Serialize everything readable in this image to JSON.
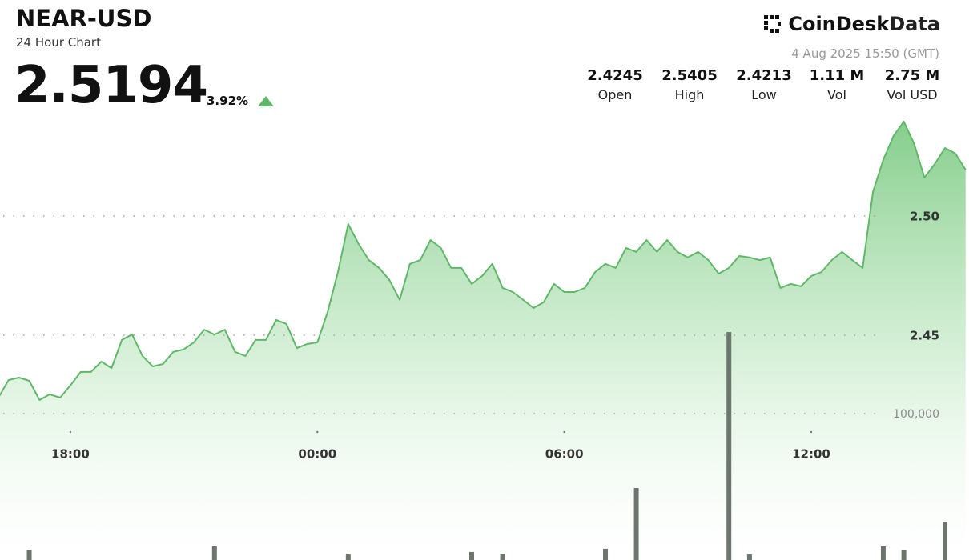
{
  "header": {
    "title": "NEAR-USD",
    "subtitle": "24 Hour Chart",
    "price": "2.5194",
    "change": "3.92%",
    "brand": {
      "name": "CoinDesk",
      "suffix": "Data"
    },
    "timestamp": "4 Aug 2025 15:50 (GMT)",
    "stats": [
      {
        "value": "2.4245",
        "label": "Open"
      },
      {
        "value": "2.5405",
        "label": "High"
      },
      {
        "value": "2.4213",
        "label": "Low"
      },
      {
        "value": "1.11 M",
        "label": "Vol"
      },
      {
        "value": "2.75 M",
        "label": "Vol USD"
      }
    ]
  },
  "chart_data": {
    "type": "line",
    "x": [
      "16:15",
      "16:30",
      "16:45",
      "17:00",
      "17:15",
      "17:30",
      "17:45",
      "18:00",
      "18:15",
      "18:30",
      "18:45",
      "19:00",
      "19:15",
      "19:30",
      "19:45",
      "20:00",
      "20:15",
      "20:30",
      "20:45",
      "21:00",
      "21:15",
      "21:30",
      "21:45",
      "22:00",
      "22:15",
      "22:30",
      "22:45",
      "23:00",
      "23:15",
      "23:30",
      "23:45",
      "00:00",
      "00:15",
      "00:30",
      "00:45",
      "01:00",
      "01:15",
      "01:30",
      "01:45",
      "02:00",
      "02:15",
      "02:30",
      "02:45",
      "03:00",
      "03:15",
      "03:30",
      "03:45",
      "04:00",
      "04:15",
      "04:30",
      "04:45",
      "05:00",
      "05:15",
      "05:30",
      "05:45",
      "06:00",
      "06:15",
      "06:30",
      "06:45",
      "07:00",
      "07:15",
      "07:30",
      "07:45",
      "08:00",
      "08:15",
      "08:30",
      "08:45",
      "09:00",
      "09:15",
      "09:30",
      "09:45",
      "10:00",
      "10:15",
      "10:30",
      "10:45",
      "11:00",
      "11:15",
      "11:30",
      "11:45",
      "12:00",
      "12:15",
      "12:30",
      "12:45",
      "13:00",
      "13:15",
      "13:30",
      "13:45",
      "14:00",
      "14:15",
      "14:30",
      "14:45",
      "15:00",
      "15:15",
      "15:30",
      "15:45"
    ],
    "series": [
      {
        "name": "Price",
        "color": "#5fb868",
        "values": [
          2.4238,
          2.4312,
          2.4322,
          2.4309,
          2.4228,
          2.4252,
          2.4238,
          2.4289,
          2.4346,
          2.4346,
          2.4389,
          2.4362,
          2.448,
          2.4503,
          2.4413,
          2.4369,
          2.4379,
          2.443,
          2.444,
          2.447,
          2.4523,
          2.4503,
          2.4523,
          2.443,
          2.4413,
          2.448,
          2.448,
          2.4564,
          2.4547,
          2.4446,
          2.4463,
          2.447,
          2.4597,
          2.4765,
          2.4966,
          2.4883,
          2.4815,
          2.4782,
          2.4732,
          2.4648,
          2.4799,
          2.4815,
          2.4899,
          2.4866,
          2.4782,
          2.4782,
          2.4715,
          2.4748,
          2.4799,
          2.4698,
          2.4681,
          2.4648,
          2.4614,
          2.4638,
          2.4715,
          2.4681,
          2.4681,
          2.4698,
          2.4765,
          2.4799,
          2.4782,
          2.4866,
          2.4849,
          2.4899,
          2.4849,
          2.4899,
          2.4849,
          2.4826,
          2.4849,
          2.4815,
          2.4758,
          2.4782,
          2.4832,
          2.4826,
          2.4815,
          2.4826,
          2.4698,
          2.4715,
          2.4705,
          2.4748,
          2.4765,
          2.4815,
          2.4849,
          2.4815,
          2.4782,
          2.5101,
          2.5235,
          2.5336,
          2.5396,
          2.5302,
          2.5161,
          2.5218,
          2.5285,
          2.5262,
          2.5194
        ]
      },
      {
        "name": "Volume",
        "type": "bar",
        "axis": "y2",
        "color": "#6c766e",
        "values": [
          0,
          0,
          0,
          7100,
          0,
          0,
          0,
          0,
          0,
          0,
          0,
          0,
          0,
          0,
          0,
          0,
          0,
          0,
          0,
          0,
          0,
          9300,
          0,
          0,
          0,
          0,
          0,
          0,
          0,
          0,
          0,
          0,
          0,
          0,
          3800,
          0,
          0,
          0,
          0,
          0,
          0,
          0,
          0,
          0,
          0,
          0,
          5500,
          0,
          0,
          4400,
          0,
          0,
          0,
          0,
          0,
          0,
          0,
          0,
          0,
          7700,
          0,
          0,
          49200,
          0,
          0,
          0,
          0,
          0,
          0,
          0,
          0,
          155700,
          0,
          3800,
          0,
          0,
          0,
          0,
          0,
          0,
          0,
          0,
          0,
          0,
          0,
          0,
          9300,
          0,
          6600,
          0,
          0,
          0,
          26200,
          0,
          0
        ]
      }
    ],
    "xlim": [
      "16:15",
      "15:50"
    ],
    "xticks": [
      "18:00",
      "00:00",
      "06:00",
      "12:00"
    ],
    "ylim": [
      2.3557,
      2.5436
    ],
    "yticks": [
      2.45,
      {
        "value": 2.5,
        "label": "2.50"
      }
    ],
    "y2lim": [
      0,
      306000
    ],
    "y2ticks": [
      {
        "value": 100000,
        "label": "100,000"
      }
    ],
    "grid": true
  }
}
